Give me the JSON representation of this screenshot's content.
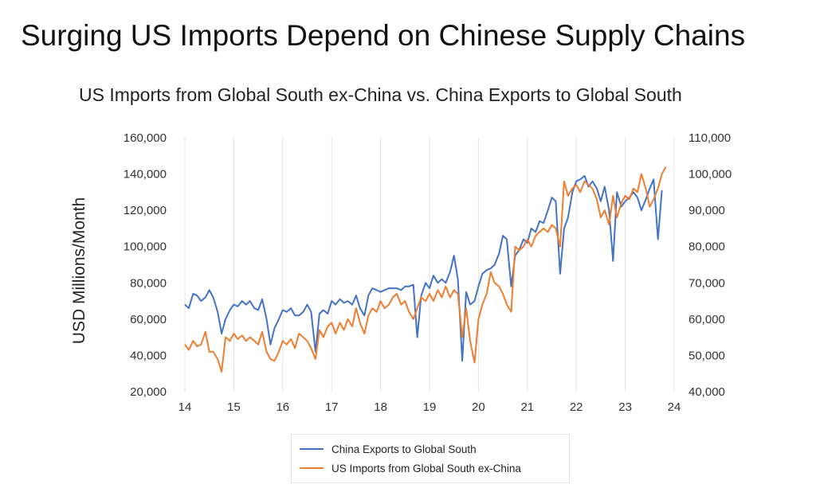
{
  "slide_title": "Surging US Imports Depend on Chinese Supply Chains",
  "chart_data": {
    "type": "line",
    "title": "US Imports from Global South ex-China vs. China Exports to Global South",
    "ylabel": "USD Millions/Month",
    "xlabel": "",
    "x_ticks": [
      "14",
      "15",
      "16",
      "17",
      "18",
      "19",
      "20",
      "21",
      "22",
      "23",
      "24"
    ],
    "left_axis": {
      "ticks": [
        "20,000",
        "40,000",
        "60,000",
        "80,000",
        "100,000",
        "120,000",
        "140,000",
        "160,000"
      ],
      "ylim": [
        20000,
        160000
      ]
    },
    "right_axis": {
      "ticks": [
        "40,000",
        "50,000",
        "60,000",
        "70,000",
        "80,000",
        "90,000",
        "100,000",
        "110,000"
      ],
      "ylim": [
        40000,
        110000
      ]
    },
    "grid": "vertical",
    "legend_position": "bottom",
    "series": [
      {
        "name": "China Exports to Global South",
        "color": "#4472c4",
        "axis": "left",
        "points": [
          [
            2014.0,
            68000
          ],
          [
            2014.08,
            66000
          ],
          [
            2014.17,
            74000
          ],
          [
            2014.25,
            73000
          ],
          [
            2014.33,
            70000
          ],
          [
            2014.42,
            72000
          ],
          [
            2014.5,
            76000
          ],
          [
            2014.58,
            72000
          ],
          [
            2014.67,
            64000
          ],
          [
            2014.75,
            52000
          ],
          [
            2014.83,
            60000
          ],
          [
            2014.92,
            65000
          ],
          [
            2015.0,
            68000
          ],
          [
            2015.08,
            67000
          ],
          [
            2015.17,
            70000
          ],
          [
            2015.25,
            68000
          ],
          [
            2015.33,
            70000
          ],
          [
            2015.42,
            66000
          ],
          [
            2015.5,
            65000
          ],
          [
            2015.58,
            71000
          ],
          [
            2015.67,
            60000
          ],
          [
            2015.75,
            46000
          ],
          [
            2015.83,
            55000
          ],
          [
            2015.92,
            60000
          ],
          [
            2016.0,
            65000
          ],
          [
            2016.08,
            64000
          ],
          [
            2016.17,
            66000
          ],
          [
            2016.25,
            62000
          ],
          [
            2016.33,
            62000
          ],
          [
            2016.42,
            64000
          ],
          [
            2016.5,
            68000
          ],
          [
            2016.58,
            64000
          ],
          [
            2016.67,
            42000
          ],
          [
            2016.75,
            63000
          ],
          [
            2016.83,
            65000
          ],
          [
            2016.92,
            63000
          ],
          [
            2017.0,
            70000
          ],
          [
            2017.08,
            68000
          ],
          [
            2017.17,
            71000
          ],
          [
            2017.25,
            69000
          ],
          [
            2017.33,
            70000
          ],
          [
            2017.42,
            68000
          ],
          [
            2017.5,
            73000
          ],
          [
            2017.58,
            66000
          ],
          [
            2017.67,
            62000
          ],
          [
            2017.75,
            73000
          ],
          [
            2017.83,
            77000
          ],
          [
            2017.92,
            76000
          ],
          [
            2018.0,
            75000
          ],
          [
            2018.08,
            76000
          ],
          [
            2018.17,
            77000
          ],
          [
            2018.25,
            77000
          ],
          [
            2018.33,
            77000
          ],
          [
            2018.42,
            76000
          ],
          [
            2018.5,
            78000
          ],
          [
            2018.58,
            78000
          ],
          [
            2018.67,
            79000
          ],
          [
            2018.75,
            50000
          ],
          [
            2018.83,
            73000
          ],
          [
            2018.92,
            80000
          ],
          [
            2019.0,
            77000
          ],
          [
            2019.08,
            84000
          ],
          [
            2019.17,
            80000
          ],
          [
            2019.25,
            82000
          ],
          [
            2019.33,
            80000
          ],
          [
            2019.42,
            86000
          ],
          [
            2019.5,
            95000
          ],
          [
            2019.58,
            82000
          ],
          [
            2019.67,
            37000
          ],
          [
            2019.75,
            75000
          ],
          [
            2019.83,
            68000
          ],
          [
            2019.92,
            70000
          ],
          [
            2020.0,
            78000
          ],
          [
            2020.08,
            85000
          ],
          [
            2020.17,
            87000
          ],
          [
            2020.25,
            88000
          ],
          [
            2020.33,
            90000
          ],
          [
            2020.42,
            96000
          ],
          [
            2020.5,
            106000
          ],
          [
            2020.58,
            104000
          ],
          [
            2020.67,
            78000
          ],
          [
            2020.75,
            95000
          ],
          [
            2020.83,
            98000
          ],
          [
            2020.92,
            104000
          ],
          [
            2021.0,
            102000
          ],
          [
            2021.08,
            110000
          ],
          [
            2021.17,
            108000
          ],
          [
            2021.25,
            114000
          ],
          [
            2021.33,
            113000
          ],
          [
            2021.42,
            120000
          ],
          [
            2021.5,
            127000
          ],
          [
            2021.58,
            125000
          ],
          [
            2021.67,
            85000
          ],
          [
            2021.75,
            110000
          ],
          [
            2021.83,
            116000
          ],
          [
            2021.92,
            130000
          ],
          [
            2022.0,
            136000
          ],
          [
            2022.08,
            137000
          ],
          [
            2022.17,
            139000
          ],
          [
            2022.25,
            133000
          ],
          [
            2022.33,
            136000
          ],
          [
            2022.42,
            132000
          ],
          [
            2022.5,
            125000
          ],
          [
            2022.58,
            133000
          ],
          [
            2022.67,
            120000
          ],
          [
            2022.75,
            92000
          ],
          [
            2022.83,
            130000
          ],
          [
            2022.92,
            122000
          ],
          [
            2023.0,
            125000
          ],
          [
            2023.08,
            127000
          ],
          [
            2023.17,
            130000
          ],
          [
            2023.25,
            127000
          ],
          [
            2023.33,
            120000
          ],
          [
            2023.42,
            126000
          ],
          [
            2023.5,
            132000
          ],
          [
            2023.58,
            137000
          ],
          [
            2023.67,
            104000
          ],
          [
            2023.75,
            131000
          ]
        ]
      },
      {
        "name": "US Imports from Global South ex-China",
        "color": "#ed7d31",
        "axis": "right",
        "points": [
          [
            2014.0,
            53000
          ],
          [
            2014.08,
            51500
          ],
          [
            2014.17,
            54000
          ],
          [
            2014.25,
            52500
          ],
          [
            2014.33,
            53000
          ],
          [
            2014.42,
            56500
          ],
          [
            2014.5,
            51000
          ],
          [
            2014.58,
            51000
          ],
          [
            2014.67,
            49000
          ],
          [
            2014.75,
            45500
          ],
          [
            2014.83,
            55000
          ],
          [
            2014.92,
            54000
          ],
          [
            2015.0,
            56000
          ],
          [
            2015.08,
            54500
          ],
          [
            2015.17,
            55500
          ],
          [
            2015.25,
            54000
          ],
          [
            2015.33,
            55000
          ],
          [
            2015.42,
            54000
          ],
          [
            2015.5,
            53000
          ],
          [
            2015.58,
            56500
          ],
          [
            2015.67,
            51000
          ],
          [
            2015.75,
            49000
          ],
          [
            2015.83,
            48500
          ],
          [
            2015.92,
            51000
          ],
          [
            2016.0,
            54000
          ],
          [
            2016.08,
            53000
          ],
          [
            2016.17,
            54500
          ],
          [
            2016.25,
            52000
          ],
          [
            2016.33,
            56000
          ],
          [
            2016.42,
            55000
          ],
          [
            2016.5,
            54000
          ],
          [
            2016.58,
            52000
          ],
          [
            2016.67,
            49000
          ],
          [
            2016.75,
            57000
          ],
          [
            2016.83,
            55000
          ],
          [
            2016.92,
            58000
          ],
          [
            2017.0,
            59000
          ],
          [
            2017.08,
            56000
          ],
          [
            2017.17,
            59000
          ],
          [
            2017.25,
            57000
          ],
          [
            2017.33,
            60000
          ],
          [
            2017.42,
            58000
          ],
          [
            2017.5,
            63000
          ],
          [
            2017.58,
            59000
          ],
          [
            2017.67,
            56000
          ],
          [
            2017.75,
            61000
          ],
          [
            2017.83,
            63000
          ],
          [
            2017.92,
            62000
          ],
          [
            2018.0,
            65000
          ],
          [
            2018.08,
            63000
          ],
          [
            2018.17,
            64000
          ],
          [
            2018.25,
            66000
          ],
          [
            2018.33,
            67000
          ],
          [
            2018.42,
            64000
          ],
          [
            2018.5,
            65000
          ],
          [
            2018.58,
            62000
          ],
          [
            2018.67,
            60000
          ],
          [
            2018.75,
            63000
          ],
          [
            2018.83,
            66000
          ],
          [
            2018.92,
            65000
          ],
          [
            2019.0,
            67000
          ],
          [
            2019.08,
            65000
          ],
          [
            2019.17,
            68000
          ],
          [
            2019.25,
            66000
          ],
          [
            2019.33,
            69000
          ],
          [
            2019.42,
            66000
          ],
          [
            2019.5,
            68000
          ],
          [
            2019.58,
            67000
          ],
          [
            2019.67,
            55000
          ],
          [
            2019.75,
            63000
          ],
          [
            2019.83,
            54000
          ],
          [
            2019.92,
            48000
          ],
          [
            2020.0,
            60000
          ],
          [
            2020.08,
            64000
          ],
          [
            2020.17,
            67000
          ],
          [
            2020.25,
            73000
          ],
          [
            2020.33,
            70000
          ],
          [
            2020.42,
            69000
          ],
          [
            2020.5,
            67000
          ],
          [
            2020.58,
            64000
          ],
          [
            2020.67,
            62000
          ],
          [
            2020.75,
            80000
          ],
          [
            2020.83,
            79000
          ],
          [
            2020.92,
            80000
          ],
          [
            2021.0,
            82000
          ],
          [
            2021.08,
            80000
          ],
          [
            2021.17,
            83000
          ],
          [
            2021.25,
            84000
          ],
          [
            2021.33,
            85000
          ],
          [
            2021.42,
            84000
          ],
          [
            2021.5,
            86000
          ],
          [
            2021.58,
            85000
          ],
          [
            2021.67,
            80000
          ],
          [
            2021.75,
            98000
          ],
          [
            2021.83,
            94000
          ],
          [
            2021.92,
            96000
          ],
          [
            2022.0,
            97000
          ],
          [
            2022.08,
            95000
          ],
          [
            2022.17,
            98000
          ],
          [
            2022.25,
            97000
          ],
          [
            2022.33,
            96000
          ],
          [
            2022.42,
            93000
          ],
          [
            2022.5,
            88000
          ],
          [
            2022.58,
            90000
          ],
          [
            2022.67,
            86000
          ],
          [
            2022.75,
            94000
          ],
          [
            2022.83,
            88000
          ],
          [
            2022.92,
            92000
          ],
          [
            2023.0,
            94000
          ],
          [
            2023.08,
            93000
          ],
          [
            2023.17,
            96000
          ],
          [
            2023.25,
            95000
          ],
          [
            2023.33,
            100000
          ],
          [
            2023.42,
            96000
          ],
          [
            2023.5,
            91000
          ],
          [
            2023.58,
            93000
          ],
          [
            2023.67,
            96000
          ],
          [
            2023.75,
            100000
          ],
          [
            2023.83,
            102000
          ]
        ]
      }
    ]
  }
}
